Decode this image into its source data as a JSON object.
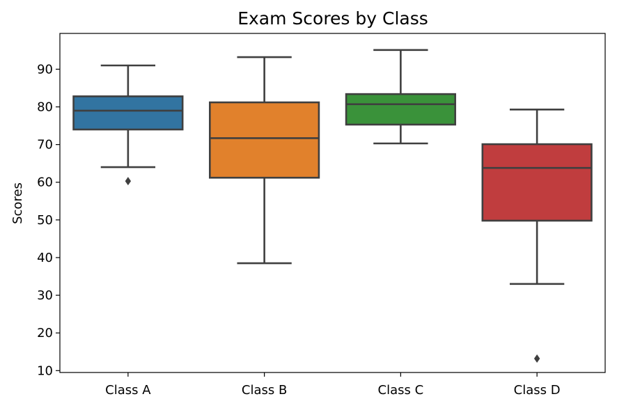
{
  "chart_data": {
    "type": "box",
    "title": "Exam Scores by Class",
    "xlabel": "",
    "ylabel": "Scores",
    "ylim": [
      9.5,
      99.5
    ],
    "yticks": [
      10,
      20,
      30,
      40,
      50,
      60,
      70,
      80,
      90
    ],
    "grid": false,
    "categories": [
      "Class A",
      "Class B",
      "Class C",
      "Class D"
    ],
    "boxes": [
      {
        "category": "Class A",
        "color": "#3274a1",
        "whisker_low": 64.0,
        "q1": 74.0,
        "median": 79.0,
        "q3": 82.8,
        "whisker_high": 91.0,
        "outliers": [
          60.3
        ]
      },
      {
        "category": "Class B",
        "color": "#e1812c",
        "whisker_low": 38.5,
        "q1": 61.2,
        "median": 71.7,
        "q3": 81.2,
        "whisker_high": 93.2,
        "outliers": []
      },
      {
        "category": "Class C",
        "color": "#3a923a",
        "whisker_low": 70.3,
        "q1": 75.3,
        "median": 80.7,
        "q3": 83.4,
        "whisker_high": 95.1,
        "outliers": []
      },
      {
        "category": "Class D",
        "color": "#c03d3e",
        "whisker_low": 33.0,
        "q1": 49.8,
        "median": 63.8,
        "q3": 70.1,
        "whisker_high": 79.3,
        "outliers": [
          13.2
        ]
      }
    ]
  }
}
